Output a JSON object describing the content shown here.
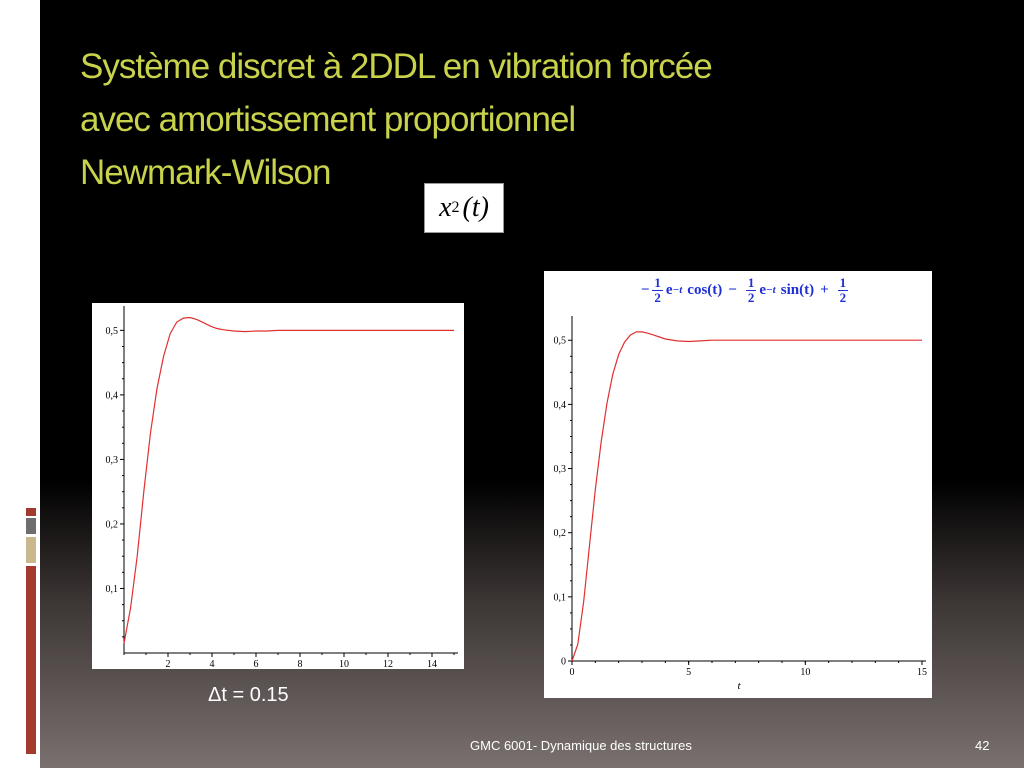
{
  "slide": {
    "title_lines": [
      "Système discret à 2DDL en vibration forcée",
      "avec amortissement proportionnel",
      "Newmark-Wilson"
    ],
    "formula_var": "x",
    "formula_sub": "2",
    "formula_arg": "(t)",
    "dt_label": "Δt = 0.15",
    "footer": "GMC 6001-  Dynamique des structures",
    "page_number": "42",
    "title_color": "#c8d24a",
    "accent_color": "#a33a2e"
  },
  "analytic_expression": {
    "parts": [
      "−",
      "1",
      "2",
      "e",
      "−t",
      "cos(t)",
      "−",
      "1",
      "2",
      "e",
      "−t",
      "sin(t)",
      "+",
      "1",
      "2"
    ]
  },
  "chart_data": [
    {
      "type": "line",
      "series": [
        {
          "x": [
            0,
            0.3,
            0.6,
            0.9,
            1.2,
            1.5,
            1.8,
            2.1,
            2.4,
            2.7,
            3.0,
            3.3,
            3.6,
            3.9,
            4.2,
            4.5,
            5.0,
            5.5,
            6.0,
            6.5,
            7.0,
            7.5,
            8.0,
            9.0,
            10.0,
            11.0,
            12.0,
            13.0,
            14.0,
            15.0
          ],
          "y": [
            0.015,
            0.07,
            0.15,
            0.25,
            0.34,
            0.41,
            0.46,
            0.495,
            0.513,
            0.519,
            0.52,
            0.517,
            0.512,
            0.507,
            0.503,
            0.501,
            0.499,
            0.498,
            0.499,
            0.499,
            0.5,
            0.5,
            0.5,
            0.5,
            0.5,
            0.5,
            0.5,
            0.5,
            0.5,
            0.5
          ]
        }
      ],
      "xticks": [
        "2",
        "4",
        "6",
        "8",
        "10",
        "12",
        "14"
      ],
      "yticks": [
        "0,1",
        "0,2",
        "0,3",
        "0,4",
        "0,5"
      ],
      "xlim": [
        0,
        15
      ],
      "ylim": [
        0,
        0.53
      ],
      "color": "#e03030"
    },
    {
      "type": "line",
      "series": [
        {
          "x": [
            0,
            0.25,
            0.5,
            0.75,
            1.0,
            1.25,
            1.5,
            1.75,
            2.0,
            2.25,
            2.5,
            2.75,
            3.0,
            3.25,
            3.5,
            3.75,
            4.0,
            4.5,
            5.0,
            5.5,
            6.0,
            7.0,
            8.0,
            10.0,
            12.0,
            15.0
          ],
          "y": [
            0,
            0.026,
            0.093,
            0.18,
            0.267,
            0.342,
            0.402,
            0.447,
            0.478,
            0.497,
            0.508,
            0.513,
            0.513,
            0.511,
            0.508,
            0.505,
            0.502,
            0.499,
            0.498,
            0.499,
            0.5,
            0.5,
            0.5,
            0.5,
            0.5,
            0.5
          ]
        }
      ],
      "xticks": [
        "0",
        "5",
        "10",
        "15"
      ],
      "yticks": [
        "0",
        "0,1",
        "0,2",
        "0,3",
        "0,4",
        "0,5"
      ],
      "xlabel": "t",
      "xlim": [
        0,
        15
      ],
      "ylim": [
        0,
        0.53
      ],
      "color": "#e03030"
    }
  ]
}
